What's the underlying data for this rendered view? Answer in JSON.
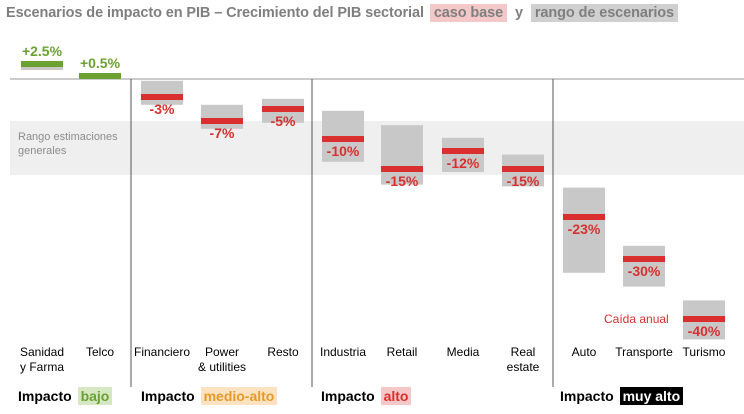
{
  "title": {
    "text": "Escenarios de impacto en PIB – Crecimiento del PIB sectorial",
    "base_tag": "caso base",
    "connector": "y",
    "range_tag": "rango de escenarios"
  },
  "band_label": "Rango estimaciones generales",
  "annotation": "Caída anual",
  "groups": [
    {
      "prefix": "Impacto",
      "tag": "bajo",
      "tag_color": "#6aa131"
    },
    {
      "prefix": "Impacto",
      "tag": "medio-alto",
      "tag_color": "#e69a2a"
    },
    {
      "prefix": "Impacto",
      "tag": "alto",
      "tag_color": "#d9302f"
    },
    {
      "prefix": "Impacto",
      "tag": "muy alto",
      "tag_color": "#000000"
    }
  ],
  "colors": {
    "base_marker_low": "#6aa131",
    "base_marker": "#d9302f",
    "range_bar": "#c8c8c8",
    "band": "#efefef",
    "label_negative": "#d9302f",
    "label_positive": "#6aa131"
  },
  "chart_data": {
    "type": "bar",
    "title": "Escenarios de impacto en PIB – Crecimiento del PIB sectorial caso base y rango de escenarios",
    "xlabel": "",
    "ylabel": "",
    "ylim": [
      -45,
      5
    ],
    "band_range": [
      -16,
      -7
    ],
    "categories": [
      "Sanidad y Farma",
      "Telco",
      "Financiero",
      "Power & utilities",
      "Resto",
      "Industria",
      "Retail",
      "Media",
      "Real estate",
      "Auto",
      "Transporte",
      "Turismo"
    ],
    "category_groups": [
      0,
      0,
      1,
      1,
      1,
      2,
      2,
      2,
      2,
      3,
      3,
      3
    ],
    "series": [
      {
        "name": "caso base",
        "values": [
          2.5,
          0.5,
          -3,
          -7,
          -5,
          -10,
          -15,
          -12,
          -15,
          -23,
          -30,
          -40
        ],
        "labels": [
          "+2.5%",
          "+0.5%",
          "-3%",
          "-7%",
          "-5%",
          "-10%",
          "-15%",
          "-12%",
          "-15%",
          "-23%",
          "-30%",
          "-40%"
        ]
      },
      {
        "name": "rango de escenarios",
        "ranges": [
          [
            1.5,
            2.5
          ],
          [
            0.5,
            0.5
          ],
          [
            -0.3,
            -4.3
          ],
          [
            -4.3,
            -8.3
          ],
          [
            -3.3,
            -7.3
          ],
          [
            -5.3,
            -13.8
          ],
          [
            -7.7,
            -17.6
          ],
          [
            -9.8,
            -15.5
          ],
          [
            -12.6,
            -17.9
          ],
          [
            -18.1,
            -32.3
          ],
          [
            -27.8,
            -34.6
          ],
          [
            -36.9,
            -43.4
          ]
        ]
      }
    ],
    "grid": false,
    "legend": "title"
  }
}
